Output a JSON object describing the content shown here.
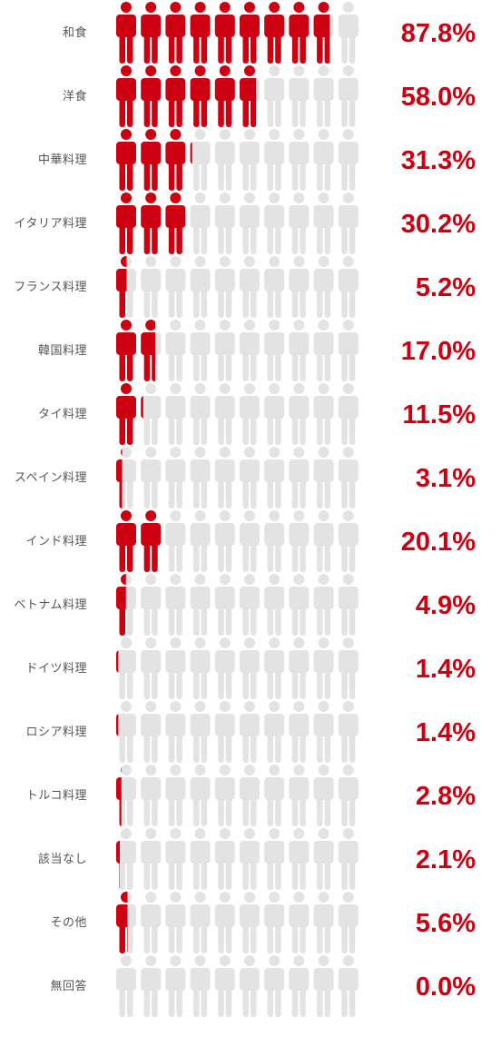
{
  "chart_data": {
    "type": "pictograph",
    "icons_per_row": 10,
    "max_value": 100,
    "colors": {
      "filled": "#cc0011",
      "empty": "#e3e3e3",
      "value_text": "#cc0011",
      "label_text": "#555555"
    },
    "icon": "person-icon",
    "unit": "%",
    "rows": [
      {
        "label": "和食",
        "value": 87.8,
        "display": "87.8%"
      },
      {
        "label": "洋食",
        "value": 58.0,
        "display": "58.0%"
      },
      {
        "label": "中華料理",
        "value": 31.3,
        "display": "31.3%"
      },
      {
        "label": "イタリア料理",
        "value": 30.2,
        "display": "30.2%"
      },
      {
        "label": "フランス料理",
        "value": 5.2,
        "display": "5.2%"
      },
      {
        "label": "韓国料理",
        "value": 17.0,
        "display": "17.0%"
      },
      {
        "label": "タイ料理",
        "value": 11.5,
        "display": "11.5%"
      },
      {
        "label": "スペイン料理",
        "value": 3.1,
        "display": "3.1%"
      },
      {
        "label": "インド料理",
        "value": 20.1,
        "display": "20.1%"
      },
      {
        "label": "ベトナム料理",
        "value": 4.9,
        "display": "4.9%"
      },
      {
        "label": "ドイツ料理",
        "value": 1.4,
        "display": "1.4%"
      },
      {
        "label": "ロシア料理",
        "value": 1.4,
        "display": "1.4%"
      },
      {
        "label": "トルコ料理",
        "value": 2.8,
        "display": "2.8%"
      },
      {
        "label": "該当なし",
        "value": 2.1,
        "display": "2.1%"
      },
      {
        "label": "その他",
        "value": 5.6,
        "display": "5.6%"
      },
      {
        "label": "無回答",
        "value": 0.0,
        "display": "0.0%"
      }
    ]
  }
}
